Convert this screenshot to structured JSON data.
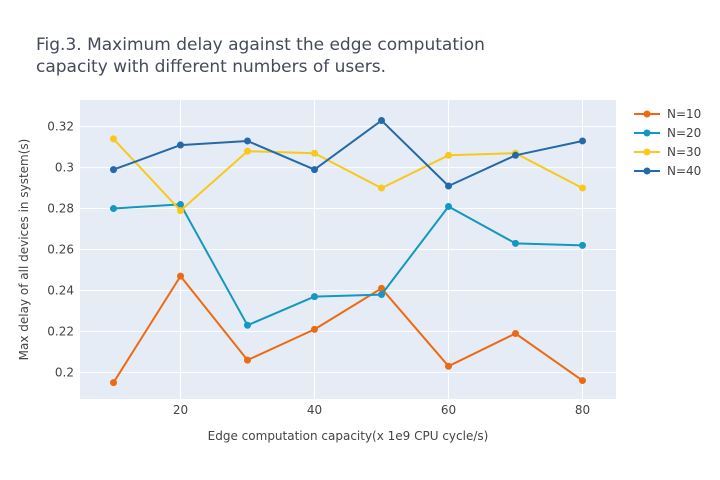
{
  "chart_data": {
    "type": "line",
    "title_lines": [
      "Fig.3. Maximum delay against the edge computation",
      "capacity with different numbers of users."
    ],
    "xlabel": "Edge computation capacity(x 1e9 CPU cycle/s)",
    "ylabel": "Max delay of all devices in system(s)",
    "xlim": [
      5,
      85
    ],
    "ylim": [
      0.187,
      0.333
    ],
    "xticks": [
      20,
      40,
      60,
      80
    ],
    "xtick_labels": [
      "20",
      "40",
      "60",
      "80"
    ],
    "yticks": [
      0.2,
      0.22,
      0.24,
      0.26,
      0.28,
      0.3,
      0.32
    ],
    "ytick_labels": [
      "0.2",
      "0.22",
      "0.24",
      "0.26",
      "0.28",
      "0.3",
      "0.32"
    ],
    "grid": true,
    "legend_position": "top-right, outside plot",
    "plot_background": "#e5ecf6",
    "x": [
      10,
      20,
      30,
      40,
      50,
      60,
      70,
      80
    ],
    "series": [
      {
        "name": "N=10",
        "color": "#ee6a12",
        "values": [
          0.195,
          0.247,
          0.206,
          0.221,
          0.241,
          0.203,
          0.219,
          0.196
        ]
      },
      {
        "name": "N=20",
        "color": "#1497c0",
        "values": [
          0.28,
          0.282,
          0.223,
          0.237,
          0.238,
          0.281,
          0.263,
          0.262
        ]
      },
      {
        "name": "N=30",
        "color": "#f8c81a",
        "values": [
          0.314,
          0.279,
          0.308,
          0.307,
          0.29,
          0.306,
          0.307,
          0.29
        ]
      },
      {
        "name": "N=40",
        "color": "#2569a8",
        "values": [
          0.299,
          0.311,
          0.313,
          0.299,
          0.323,
          0.291,
          0.306,
          0.313
        ]
      }
    ]
  }
}
